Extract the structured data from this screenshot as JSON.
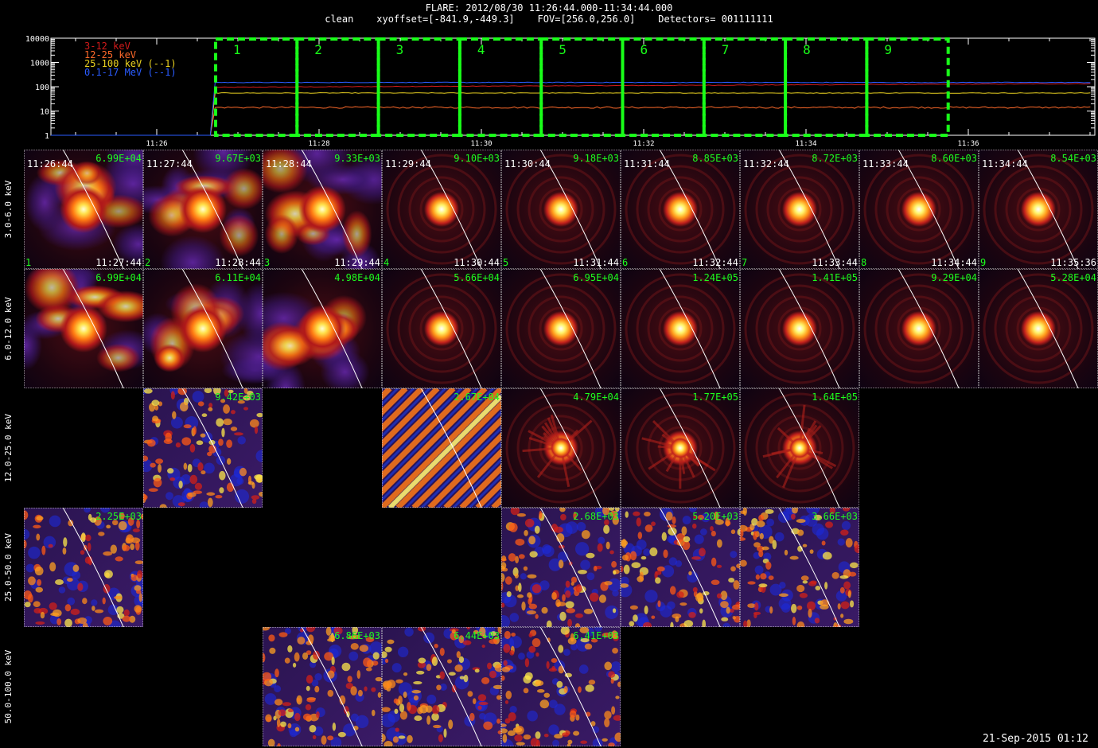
{
  "header": {
    "line1": "FLARE: 2012/08/30 11:26:44.000-11:34:44.000",
    "line2": "clean    xyoffset=[-841.9,-449.3]    FOV=[256.0,256.0]    Detectors= 001111111"
  },
  "footer": {
    "date": "21-Sep-2015 01:12"
  },
  "colors": {
    "band_3_12": "#d21a1a",
    "band_12_25": "#ff6a2a",
    "band_25_100": "#e8d020",
    "band_100k": "#2a5cff",
    "interval_box": "#19ff19",
    "text_green": "#1eff1e"
  },
  "chart_data": [
    {
      "type": "line",
      "ylim": [
        1,
        10000
      ],
      "yscale": "log",
      "yticks": [
        "1",
        "10",
        "100",
        "1000",
        "10000"
      ],
      "xticks": [
        "11:26",
        "11:28",
        "11:30",
        "11:32",
        "11:34",
        "11:36"
      ],
      "legend_position": "top-left",
      "series": [
        {
          "name": "3-12 keV",
          "approx_level": 95,
          "color": "#d21a1a"
        },
        {
          "name": "12-25 keV",
          "approx_level": 14,
          "color": "#ff6a2a"
        },
        {
          "name": "25-100 keV (--1)",
          "approx_level": 55,
          "color": "#e8d020"
        },
        {
          "name": "0.1-17 MeV (--1)",
          "approx_level": 150,
          "color": "#2a5cff"
        }
      ],
      "intervals": [
        "1",
        "2",
        "3",
        "4",
        "5",
        "6",
        "7",
        "8",
        "9"
      ]
    },
    {
      "type": "heatmap",
      "rows": [
        "3.0-6.0 keV",
        "6.0-12.0 keV",
        "12.0-25.0 keV",
        "25.0-50.0 keV",
        "50.0-100.0 keV"
      ],
      "images": [
        {
          "row": 0,
          "col": 0,
          "start": "11:26:44",
          "end": "11:27:44",
          "index": "1",
          "max": "6.99E+04",
          "kind": "blob"
        },
        {
          "row": 0,
          "col": 1,
          "start": "11:27:44",
          "end": "11:28:44",
          "index": "2",
          "max": "9.67E+03",
          "kind": "blob"
        },
        {
          "row": 0,
          "col": 2,
          "start": "11:28:44",
          "end": "11:29:44",
          "index": "3",
          "max": "9.33E+03",
          "kind": "blob"
        },
        {
          "row": 0,
          "col": 3,
          "start": "11:29:44",
          "end": "11:30:44",
          "index": "4",
          "max": "9.10E+03",
          "kind": "point"
        },
        {
          "row": 0,
          "col": 4,
          "start": "11:30:44",
          "end": "11:31:44",
          "index": "5",
          "max": "9.18E+03",
          "kind": "point"
        },
        {
          "row": 0,
          "col": 5,
          "start": "11:31:44",
          "end": "11:32:44",
          "index": "6",
          "max": "8.85E+03",
          "kind": "point"
        },
        {
          "row": 0,
          "col": 6,
          "start": "11:32:44",
          "end": "11:33:44",
          "index": "7",
          "max": "8.72E+03",
          "kind": "point"
        },
        {
          "row": 0,
          "col": 7,
          "start": "11:33:44",
          "end": "11:34:44",
          "index": "8",
          "max": "8.60E+03",
          "kind": "point"
        },
        {
          "row": 0,
          "col": 8,
          "start": "11:34:44",
          "end": "11:35:36",
          "index": "9",
          "max": "8.54E+03",
          "kind": "point"
        },
        {
          "row": 1,
          "col": 0,
          "max": "6.99E+04",
          "kind": "blob"
        },
        {
          "row": 1,
          "col": 1,
          "max": "6.11E+04",
          "kind": "blob"
        },
        {
          "row": 1,
          "col": 2,
          "max": "4.98E+04",
          "kind": "blob"
        },
        {
          "row": 1,
          "col": 3,
          "max": "5.66E+04",
          "kind": "point"
        },
        {
          "row": 1,
          "col": 4,
          "max": "6.95E+04",
          "kind": "point"
        },
        {
          "row": 1,
          "col": 5,
          "max": "1.24E+05",
          "kind": "point"
        },
        {
          "row": 1,
          "col": 6,
          "max": "1.41E+05",
          "kind": "point"
        },
        {
          "row": 1,
          "col": 7,
          "max": "9.29E+04",
          "kind": "point"
        },
        {
          "row": 1,
          "col": 8,
          "max": "5.28E+04",
          "kind": "point"
        },
        {
          "row": 2,
          "col": 1,
          "max": "9.42E+03",
          "kind": "noise"
        },
        {
          "row": 2,
          "col": 3,
          "max": "2.67E+04",
          "kind": "stripes"
        },
        {
          "row": 2,
          "col": 4,
          "max": "4.79E+04",
          "kind": "point"
        },
        {
          "row": 2,
          "col": 5,
          "max": "1.77E+05",
          "kind": "point"
        },
        {
          "row": 2,
          "col": 6,
          "max": "1.64E+05",
          "kind": "point"
        },
        {
          "row": 3,
          "col": 0,
          "max": "2.25E+03",
          "kind": "noise"
        },
        {
          "row": 3,
          "col": 4,
          "max": "2.68E+03",
          "kind": "noise"
        },
        {
          "row": 3,
          "col": 5,
          "max": "5.20E+03",
          "kind": "noise"
        },
        {
          "row": 3,
          "col": 6,
          "max": "3.66E+03",
          "kind": "noise"
        },
        {
          "row": 4,
          "col": 2,
          "max": "6.86E+03",
          "kind": "noise"
        },
        {
          "row": 4,
          "col": 3,
          "max": "6.44E+03",
          "kind": "noise"
        },
        {
          "row": 4,
          "col": 4,
          "max": "6.41E+03",
          "kind": "noise"
        }
      ]
    }
  ]
}
